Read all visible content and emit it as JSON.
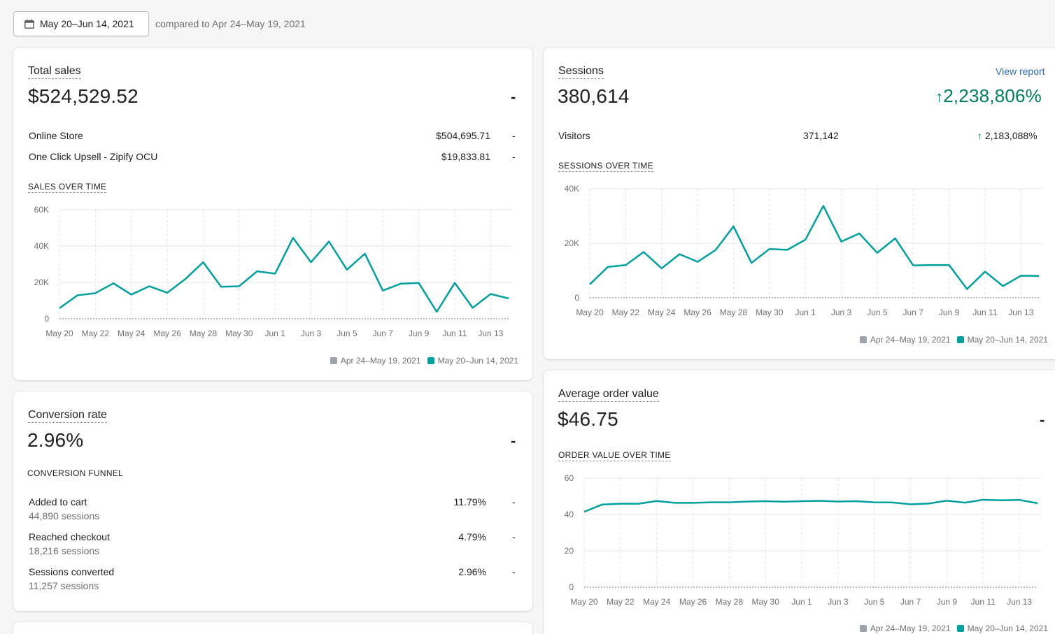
{
  "toolbar": {
    "date_range": "May 20–Jun 14, 2021",
    "compare_text": "compared to Apr 24–May 19, 2021"
  },
  "colors": {
    "primary": "#00a0a0",
    "previous": "#9ca3ab",
    "positive": "#007f5f",
    "link": "#2c6ecb"
  },
  "total_sales": {
    "title": "Total sales",
    "value": "$524,529.52",
    "change": "-",
    "rows": [
      {
        "label": "Online Store",
        "value": "$504,695.71",
        "change": "-"
      },
      {
        "label": "One Click Upsell - Zipify OCU",
        "value": "$19,833.81",
        "change": "-"
      }
    ],
    "chart_label": "SALES OVER TIME"
  },
  "sessions": {
    "title": "Sessions",
    "view_report": "View report",
    "value": "380,614",
    "change": "2,238,806%",
    "visitors_label": "Visitors",
    "visitors_value": "371,142",
    "visitors_change": "2,183,088%",
    "chart_label": "SESSIONS OVER TIME"
  },
  "conversion": {
    "title": "Conversion rate",
    "value": "2.96%",
    "change": "-",
    "funnel_label": "CONVERSION FUNNEL",
    "steps": [
      {
        "label": "Added to cart",
        "sessions": "44,890 sessions",
        "pct": "11.79%",
        "change": "-"
      },
      {
        "label": "Reached checkout",
        "sessions": "18,216 sessions",
        "pct": "4.79%",
        "change": "-"
      },
      {
        "label": "Sessions converted",
        "sessions": "11,257 sessions",
        "pct": "2.96%",
        "change": "-"
      }
    ]
  },
  "aov": {
    "title": "Average order value",
    "value": "$46.75",
    "change": "-",
    "chart_label": "ORDER VALUE OVER TIME"
  },
  "legend": {
    "previous": "Apr 24–May 19, 2021",
    "current": "May 20–Jun 14, 2021"
  },
  "chart_data": [
    {
      "type": "line",
      "title": "SALES OVER TIME",
      "x_tick_labels": [
        "May 20",
        "May 22",
        "May 24",
        "May 26",
        "May 28",
        "May 30",
        "Jun 1",
        "Jun 3",
        "Jun 5",
        "Jun 7",
        "Jun 9",
        "Jun 11",
        "Jun 13"
      ],
      "y_ticks": [
        "0",
        "20K",
        "40K",
        "60K"
      ],
      "ylim": [
        0,
        60000
      ],
      "x": [
        "May 20",
        "May 21",
        "May 22",
        "May 23",
        "May 24",
        "May 25",
        "May 26",
        "May 27",
        "May 28",
        "May 29",
        "May 30",
        "May 31",
        "Jun 1",
        "Jun 2",
        "Jun 3",
        "Jun 4",
        "Jun 5",
        "Jun 6",
        "Jun 7",
        "Jun 8",
        "Jun 9",
        "Jun 10",
        "Jun 11",
        "Jun 12",
        "Jun 13",
        "Jun 14"
      ],
      "series": [
        {
          "name": "May 20–Jun 14, 2021",
          "values": [
            5800,
            12900,
            14100,
            19500,
            13300,
            17900,
            14300,
            21800,
            31100,
            17600,
            17900,
            26100,
            24800,
            44500,
            31100,
            42500,
            27000,
            35800,
            15500,
            19300,
            19700,
            3800,
            19700,
            6000,
            13600,
            11200
          ]
        },
        {
          "name": "Apr 24–May 19, 2021",
          "values": [
            0,
            0,
            0,
            0,
            0,
            0,
            0,
            0,
            0,
            0,
            0,
            0,
            0,
            0,
            0,
            0,
            0,
            0,
            0,
            0,
            0,
            0,
            0,
            0,
            0,
            0
          ]
        }
      ],
      "legend_position": "bottom-right",
      "grid": true
    },
    {
      "type": "line",
      "title": "SESSIONS OVER TIME",
      "x_tick_labels": [
        "May 20",
        "May 22",
        "May 24",
        "May 26",
        "May 28",
        "May 30",
        "Jun 1",
        "Jun 3",
        "Jun 5",
        "Jun 7",
        "Jun 9",
        "Jun 11",
        "Jun 13"
      ],
      "y_ticks": [
        "0",
        "20K",
        "40K"
      ],
      "ylim": [
        0,
        40000
      ],
      "x": [
        "May 20",
        "May 21",
        "May 22",
        "May 23",
        "May 24",
        "May 25",
        "May 26",
        "May 27",
        "May 28",
        "May 29",
        "May 30",
        "May 31",
        "Jun 1",
        "Jun 2",
        "Jun 3",
        "Jun 4",
        "Jun 5",
        "Jun 6",
        "Jun 7",
        "Jun 8",
        "Jun 9",
        "Jun 10",
        "Jun 11",
        "Jun 12",
        "Jun 13",
        "Jun 14"
      ],
      "series": [
        {
          "name": "May 20–Jun 14, 2021",
          "values": [
            4900,
            11300,
            12000,
            16800,
            10800,
            16000,
            13200,
            17500,
            26200,
            12800,
            17900,
            17600,
            21300,
            33700,
            20600,
            23600,
            16500,
            21800,
            11900,
            12000,
            12000,
            3200,
            9600,
            4300,
            8100,
            8000
          ]
        },
        {
          "name": "Apr 24–May 19, 2021",
          "values": [
            0,
            0,
            0,
            0,
            0,
            0,
            0,
            0,
            0,
            0,
            0,
            0,
            0,
            0,
            0,
            0,
            0,
            0,
            0,
            0,
            0,
            0,
            0,
            0,
            0,
            0
          ]
        }
      ],
      "legend_position": "bottom-right",
      "grid": true
    },
    {
      "type": "line",
      "title": "ORDER VALUE OVER TIME",
      "x_tick_labels": [
        "May 20",
        "May 22",
        "May 24",
        "May 26",
        "May 28",
        "May 30",
        "Jun 1",
        "Jun 3",
        "Jun 5",
        "Jun 7",
        "Jun 9",
        "Jun 11",
        "Jun 13"
      ],
      "y_ticks": [
        "0",
        "20",
        "40",
        "60"
      ],
      "ylim": [
        0,
        60
      ],
      "x": [
        "May 20",
        "May 21",
        "May 22",
        "May 23",
        "May 24",
        "May 25",
        "May 26",
        "May 27",
        "May 28",
        "May 29",
        "May 30",
        "May 31",
        "Jun 1",
        "Jun 2",
        "Jun 3",
        "Jun 4",
        "Jun 5",
        "Jun 6",
        "Jun 7",
        "Jun 8",
        "Jun 9",
        "Jun 10",
        "Jun 11",
        "Jun 12",
        "Jun 13",
        "Jun 14"
      ],
      "series": [
        {
          "name": "May 20–Jun 14, 2021",
          "values": [
            41.5,
            45.5,
            45.9,
            45.9,
            47.4,
            46.4,
            46.4,
            46.7,
            46.7,
            47.1,
            47.3,
            47.0,
            47.3,
            47.5,
            47.1,
            47.3,
            46.7,
            46.6,
            45.6,
            46.0,
            47.6,
            46.5,
            48.1,
            47.8,
            48.0,
            46.2
          ]
        },
        {
          "name": "Apr 24–May 19, 2021",
          "values": [
            0,
            0,
            0,
            0,
            0,
            0,
            0,
            0,
            0,
            0,
            0,
            0,
            0,
            0,
            0,
            0,
            0,
            0,
            0,
            0,
            0,
            0,
            0,
            0,
            0,
            0
          ]
        }
      ],
      "legend_position": "bottom-right",
      "grid": true
    }
  ]
}
